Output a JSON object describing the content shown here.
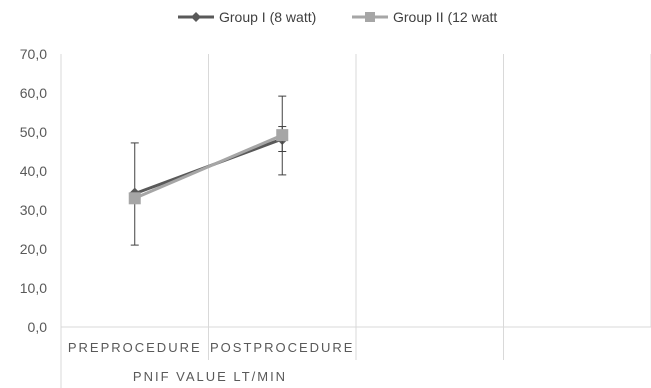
{
  "chart_data": {
    "type": "line",
    "title": "",
    "xlabel": "PNIF VALUE LT/MIN",
    "ylabel": "",
    "categories": [
      "PREPROCEDURE",
      "POSTPROCEDURE"
    ],
    "extra_empty_categories": 2,
    "ylim": [
      0,
      70
    ],
    "yticks": [
      "0,0",
      "10,0",
      "20,0",
      "30,0",
      "40,0",
      "50,0",
      "60,0",
      "70,0"
    ],
    "grid": "vertical",
    "legend_position": "top",
    "series": [
      {
        "name": "Group I (8 watt)",
        "values": [
          34.2,
          48.2
        ],
        "error_low": [
          21.0,
          45.0
        ],
        "error_high": [
          47.2,
          51.4
        ],
        "color": "#595959",
        "marker": "diamond"
      },
      {
        "name": "Group II (12 watt",
        "values": [
          33.0,
          49.2
        ],
        "error_low": [
          33.0,
          39.0
        ],
        "error_high": [
          33.0,
          59.2
        ],
        "color": "#a6a6a6",
        "marker": "square"
      }
    ]
  }
}
